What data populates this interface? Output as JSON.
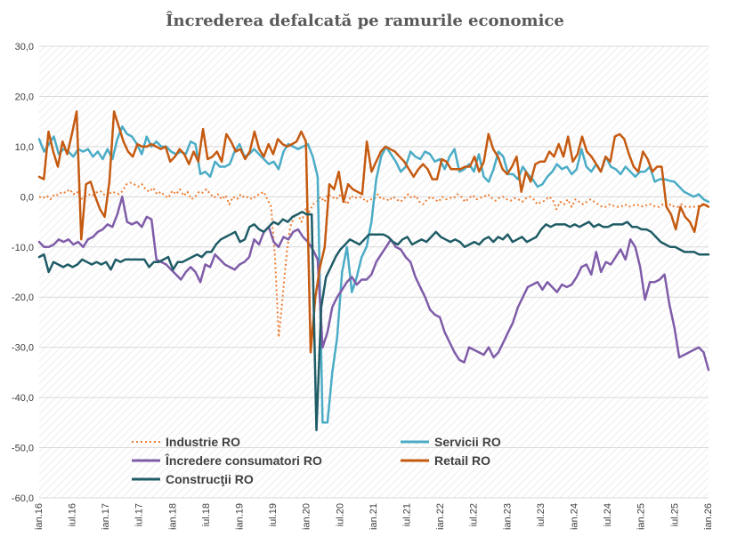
{
  "chart_data": {
    "type": "line",
    "title": "Încrederea defalcată pe ramurile economice",
    "xlabel": "",
    "ylabel": "",
    "ylim": [
      -60,
      30
    ],
    "yticks": [
      "30,0",
      "20,0",
      "10,0",
      "0,0",
      "-10,0",
      "-20,0",
      "-30,0",
      "-40,0",
      "-50,0",
      "-60,0"
    ],
    "ytick_values": [
      30,
      20,
      10,
      0,
      -10,
      -20,
      -30,
      -40,
      -50,
      -60
    ],
    "x_start": "2016-01",
    "x_end": "2026-01",
    "xticks": [
      {
        "label": "ian.16",
        "month": "2016-01"
      },
      {
        "label": "iul.16",
        "month": "2016-07"
      },
      {
        "label": "ian.17",
        "month": "2017-01"
      },
      {
        "label": "iul.17",
        "month": "2017-07"
      },
      {
        "label": "ian.18",
        "month": "2018-01"
      },
      {
        "label": "iul.18",
        "month": "2018-07"
      },
      {
        "label": "ian.19",
        "month": "2019-01"
      },
      {
        "label": "iul.19",
        "month": "2019-07"
      },
      {
        "label": "ian.20",
        "month": "2020-01"
      },
      {
        "label": "iul.20",
        "month": "2020-07"
      },
      {
        "label": "ian.21",
        "month": "2021-01"
      },
      {
        "label": "iul.21",
        "month": "2021-07"
      },
      {
        "label": "ian.22",
        "month": "2022-01"
      },
      {
        "label": "iul.22",
        "month": "2022-07"
      },
      {
        "label": "ian.23",
        "month": "2023-01"
      },
      {
        "label": "iul.23",
        "month": "2023-07"
      },
      {
        "label": "ian.24",
        "month": "2024-01"
      },
      {
        "label": "iul.24",
        "month": "2024-07"
      },
      {
        "label": "ian.25",
        "month": "2025-01"
      },
      {
        "label": "iul.25",
        "month": "2025-07"
      },
      {
        "label": "ian.26",
        "month": "2026-01"
      }
    ],
    "grid": true,
    "legend_position": "bottom-left inside plot",
    "series": [
      {
        "name": "Industrie RO",
        "color": "#ed7d31",
        "dash": "dotted",
        "values": [
          0.0,
          -0.3,
          0.2,
          -0.5,
          0.5,
          0.3,
          1.0,
          0.8,
          1.5,
          0.5,
          1.0,
          -0.5,
          0.0,
          0.5,
          0.2,
          0.8,
          1.2,
          0.5,
          0.0,
          1.0,
          0.8,
          0.5,
          1.2,
          2.5,
          2.8,
          2.5,
          2.0,
          2.5,
          1.5,
          1.0,
          1.8,
          0.5,
          1.0,
          0.2,
          -0.2,
          1.2,
          0.5,
          1.5,
          0.2,
          1.0,
          -0.5,
          0.0,
          1.0,
          0.8,
          1.5,
          0.5,
          -0.2,
          0.5,
          -0.5,
          0.3,
          -1.5,
          0.0,
          -0.5,
          0.5,
          -0.2,
          0.0,
          -0.5,
          0.2,
          0.5,
          1.0,
          -0.5,
          -2.0,
          -12.0,
          -28.0,
          -20.0,
          -12.0,
          -6.0,
          -4.0,
          -3.5,
          -5.0,
          -2.5,
          -3.0,
          -1.5,
          -1.0,
          0.0,
          -1.0,
          0.5,
          0.0,
          -0.5,
          0.3,
          -0.5,
          -1.5,
          0.2,
          -0.3,
          0.0,
          -0.2,
          -1.0,
          -0.5,
          -0.5,
          0.5,
          -0.5,
          -0.3,
          -0.8,
          0.0,
          -0.5,
          -1.0,
          -0.3,
          0.5,
          -0.3,
          0.2,
          -1.0,
          -1.5,
          -0.5,
          0.0,
          -0.5,
          -1.0,
          0.0,
          -0.5,
          -0.2,
          -0.3,
          0.5,
          0.0,
          -1.0,
          -0.3,
          0.3,
          -0.5,
          -0.2,
          0.0,
          0.5,
          -0.3,
          -0.8,
          -0.2,
          0.0,
          -0.5,
          -0.8,
          -0.3,
          -0.5,
          -1.0,
          -0.3,
          0.0,
          -0.5,
          -1.5,
          -1.0,
          -0.8,
          0.0,
          -0.5,
          -2.5,
          -1.0,
          -1.5,
          -0.5,
          -2.0,
          -0.5,
          -1.0,
          -1.5,
          -1.0,
          -0.5,
          -1.0,
          -1.5,
          -2.0,
          -2.0,
          -1.5,
          -1.8,
          -2.0,
          -2.0,
          -1.5,
          -2.0,
          -1.8,
          -1.5,
          -1.8,
          -2.0,
          -1.5,
          -1.5,
          -2.0,
          -2.0,
          -1.5,
          -2.0,
          -1.5,
          -2.0,
          -2.0,
          -1.5,
          -2.0,
          -2.0,
          -2.0,
          -2.0,
          -1.5,
          -1.5,
          -1.8
        ]
      },
      {
        "name": "Servicii RO",
        "color": "#4bacc6",
        "dash": "solid",
        "values": [
          11.5,
          9.0,
          10.5,
          12.0,
          8.5,
          9.5,
          9.0,
          8.0,
          9.5,
          9.0,
          9.5,
          8.0,
          9.0,
          7.5,
          9.5,
          7.5,
          11.5,
          14.0,
          12.5,
          12.0,
          10.5,
          8.5,
          12.0,
          10.0,
          11.0,
          10.0,
          10.0,
          9.0,
          8.5,
          9.0,
          8.5,
          11.0,
          10.5,
          4.5,
          5.0,
          4.0,
          7.0,
          6.0,
          6.0,
          6.5,
          9.0,
          10.5,
          8.0,
          8.5,
          9.5,
          8.5,
          7.5,
          6.5,
          7.0,
          5.5,
          9.0,
          10.5,
          10.0,
          9.5,
          10.0,
          10.5,
          8.0,
          4.0,
          -45.0,
          -45.0,
          -35.0,
          -28.0,
          -15.0,
          -10.0,
          -19.0,
          -16.0,
          -12.0,
          -10.0,
          -5.0,
          3.5,
          8.0,
          10.0,
          8.5,
          7.0,
          5.0,
          6.0,
          9.0,
          8.0,
          7.5,
          9.0,
          8.5,
          7.0,
          7.5,
          5.5,
          8.0,
          9.5,
          5.0,
          5.5,
          6.5,
          5.0,
          8.5,
          4.0,
          3.0,
          5.5,
          9.0,
          8.0,
          4.5,
          4.5,
          3.5,
          6.0,
          4.5,
          3.5,
          2.0,
          2.5,
          4.0,
          5.0,
          6.5,
          5.5,
          6.0,
          4.5,
          5.5,
          9.5,
          6.0,
          5.0,
          6.5,
          5.0,
          8.0,
          6.0,
          5.5,
          4.5,
          6.0,
          5.0,
          4.0,
          5.0,
          5.0,
          6.0,
          3.0,
          3.5,
          3.5,
          3.2,
          3.0,
          2.0,
          1.0,
          0.5,
          0.0,
          0.5,
          -0.5,
          -1.0
        ]
      },
      {
        "name": "Încredere consumatori RO",
        "color": "#7f5ca8",
        "dash": "solid",
        "values": [
          -9.0,
          -10.0,
          -10.0,
          -9.5,
          -8.5,
          -9.0,
          -8.5,
          -9.5,
          -9.0,
          -10.0,
          -8.5,
          -8.0,
          -7.0,
          -6.5,
          -5.5,
          -6.0,
          -3.5,
          0.0,
          -5.0,
          -5.5,
          -5.0,
          -6.0,
          -4.0,
          -4.5,
          -12.5,
          -13.0,
          -13.5,
          -14.5,
          -15.5,
          -16.5,
          -15.0,
          -14.0,
          -15.0,
          -17.0,
          -13.5,
          -14.0,
          -11.5,
          -12.5,
          -13.5,
          -14.0,
          -14.5,
          -13.5,
          -13.0,
          -12.0,
          -8.5,
          -9.5,
          -7.0,
          -6.0,
          -9.0,
          -10.0,
          -8.0,
          -8.5,
          -7.0,
          -6.5,
          -8.0,
          -9.0,
          -10.5,
          -12.5,
          -30.0,
          -27.0,
          -22.0,
          -20.0,
          -18.5,
          -17.0,
          -16.0,
          -17.5,
          -16.5,
          -16.5,
          -15.5,
          -13.0,
          -11.5,
          -10.0,
          -8.5,
          -10.0,
          -10.5,
          -12.0,
          -13.0,
          -16.0,
          -18.0,
          -20.0,
          -22.5,
          -23.5,
          -24.0,
          -27.0,
          -29.0,
          -31.0,
          -32.5,
          -33.0,
          -30.0,
          -30.5,
          -31.0,
          -31.5,
          -30.0,
          -32.0,
          -31.0,
          -29.0,
          -27.0,
          -25.0,
          -22.0,
          -20.0,
          -18.0,
          -17.5,
          -17.0,
          -18.5,
          -17.0,
          -18.0,
          -19.0,
          -17.5,
          -18.0,
          -17.5,
          -16.0,
          -14.0,
          -13.5,
          -15.5,
          -11.0,
          -15.0,
          -13.0,
          -13.5,
          -12.0,
          -10.5,
          -12.5,
          -8.5,
          -10.0,
          -14.0,
          -20.5,
          -17.0,
          -17.0,
          -16.5,
          -15.5,
          -21.5,
          -26.0,
          -32.0,
          -31.5,
          -31.0,
          -30.5,
          -30.0,
          -31.0,
          -34.5
        ]
      },
      {
        "name": "Retail RO",
        "color": "#c55a11",
        "dash": "solid",
        "values": [
          4.0,
          3.5,
          13.0,
          9.0,
          6.0,
          11.0,
          8.5,
          12.5,
          17.0,
          -8.5,
          2.5,
          3.0,
          0.0,
          -2.5,
          -4.0,
          3.0,
          17.0,
          14.0,
          11.0,
          9.0,
          8.0,
          10.5,
          10.0,
          10.0,
          10.5,
          10.0,
          9.5,
          10.0,
          7.0,
          8.0,
          9.5,
          8.5,
          6.5,
          9.0,
          7.0,
          13.5,
          7.5,
          8.0,
          9.0,
          7.0,
          12.5,
          11.0,
          9.0,
          9.5,
          7.5,
          9.0,
          13.0,
          9.5,
          8.0,
          10.5,
          8.5,
          11.5,
          10.5,
          10.0,
          10.5,
          11.0,
          13.0,
          11.0,
          -31.0,
          -20.0,
          -14.0,
          -10.0,
          2.5,
          1.5,
          5.0,
          -1.0,
          2.5,
          1.5,
          1.0,
          0.5,
          11.0,
          5.0,
          7.0,
          9.0,
          10.0,
          9.5,
          9.0,
          8.0,
          7.0,
          5.5,
          4.0,
          5.5,
          6.5,
          5.5,
          3.5,
          3.5,
          7.5,
          7.0,
          5.5,
          5.5,
          5.5,
          6.0,
          6.0,
          8.0,
          5.0,
          7.0,
          12.5,
          9.5,
          8.0,
          5.5,
          4.5,
          6.0,
          8.0,
          1.0,
          5.0,
          3.0,
          6.5,
          7.0,
          7.0,
          9.0,
          8.0,
          10.5,
          8.0,
          12.0,
          7.0,
          8.5,
          12.0,
          9.0,
          8.0,
          6.5,
          5.0,
          8.0,
          7.0,
          12.0,
          12.5,
          11.5,
          8.5,
          6.0,
          5.0,
          9.0,
          7.5,
          5.0,
          6.0,
          6.0,
          -2.0,
          -3.5,
          -6.5,
          -2.0,
          -4.0,
          -5.0,
          -7.0,
          -2.0,
          -1.5,
          -2.0
        ]
      },
      {
        "name": "Construcţii RO",
        "color": "#1f5c66",
        "dash": "solid",
        "values": [
          -12.0,
          -11.5,
          -15.0,
          -13.0,
          -13.5,
          -14.0,
          -13.5,
          -14.0,
          -13.5,
          -12.5,
          -13.0,
          -13.5,
          -13.0,
          -13.5,
          -13.0,
          -14.5,
          -12.5,
          -13.0,
          -12.5,
          -12.5,
          -12.5,
          -12.5,
          -12.5,
          -14.0,
          -13.0,
          -13.0,
          -12.5,
          -12.0,
          -14.5,
          -13.0,
          -13.0,
          -12.5,
          -12.0,
          -11.5,
          -12.0,
          -11.0,
          -11.0,
          -9.5,
          -8.5,
          -8.0,
          -7.5,
          -7.0,
          -9.0,
          -8.5,
          -6.0,
          -5.5,
          -6.5,
          -7.0,
          -6.0,
          -5.0,
          -5.5,
          -4.5,
          -5.0,
          -4.0,
          -3.5,
          -3.0,
          -3.5,
          -3.5,
          -46.5,
          -22.0,
          -16.0,
          -14.0,
          -12.0,
          -10.5,
          -9.5,
          -8.5,
          -9.0,
          -9.5,
          -8.5,
          -7.5,
          -7.5,
          -7.5,
          -7.5,
          -8.0,
          -9.0,
          -9.5,
          -8.5,
          -8.0,
          -9.5,
          -9.0,
          -8.5,
          -9.0,
          -8.0,
          -7.0,
          -8.0,
          -8.5,
          -9.0,
          -8.5,
          -9.0,
          -10.0,
          -9.5,
          -9.0,
          -9.5,
          -8.5,
          -8.0,
          -9.0,
          -8.0,
          -8.5,
          -7.5,
          -9.0,
          -8.5,
          -8.0,
          -9.0,
          -8.5,
          -8.0,
          -6.5,
          -5.5,
          -6.0,
          -5.5,
          -5.5,
          -5.5,
          -6.0,
          -5.5,
          -6.0,
          -5.5,
          -5.0,
          -6.0,
          -5.5,
          -6.0,
          -6.0,
          -5.5,
          -5.5,
          -5.5,
          -5.0,
          -6.0,
          -6.0,
          -6.5,
          -6.5,
          -7.0,
          -8.0,
          -9.0,
          -9.5,
          -10.0,
          -10.0,
          -10.5,
          -11.0,
          -11.0,
          -11.0,
          -11.5,
          -11.5,
          -11.5
        ]
      }
    ]
  }
}
